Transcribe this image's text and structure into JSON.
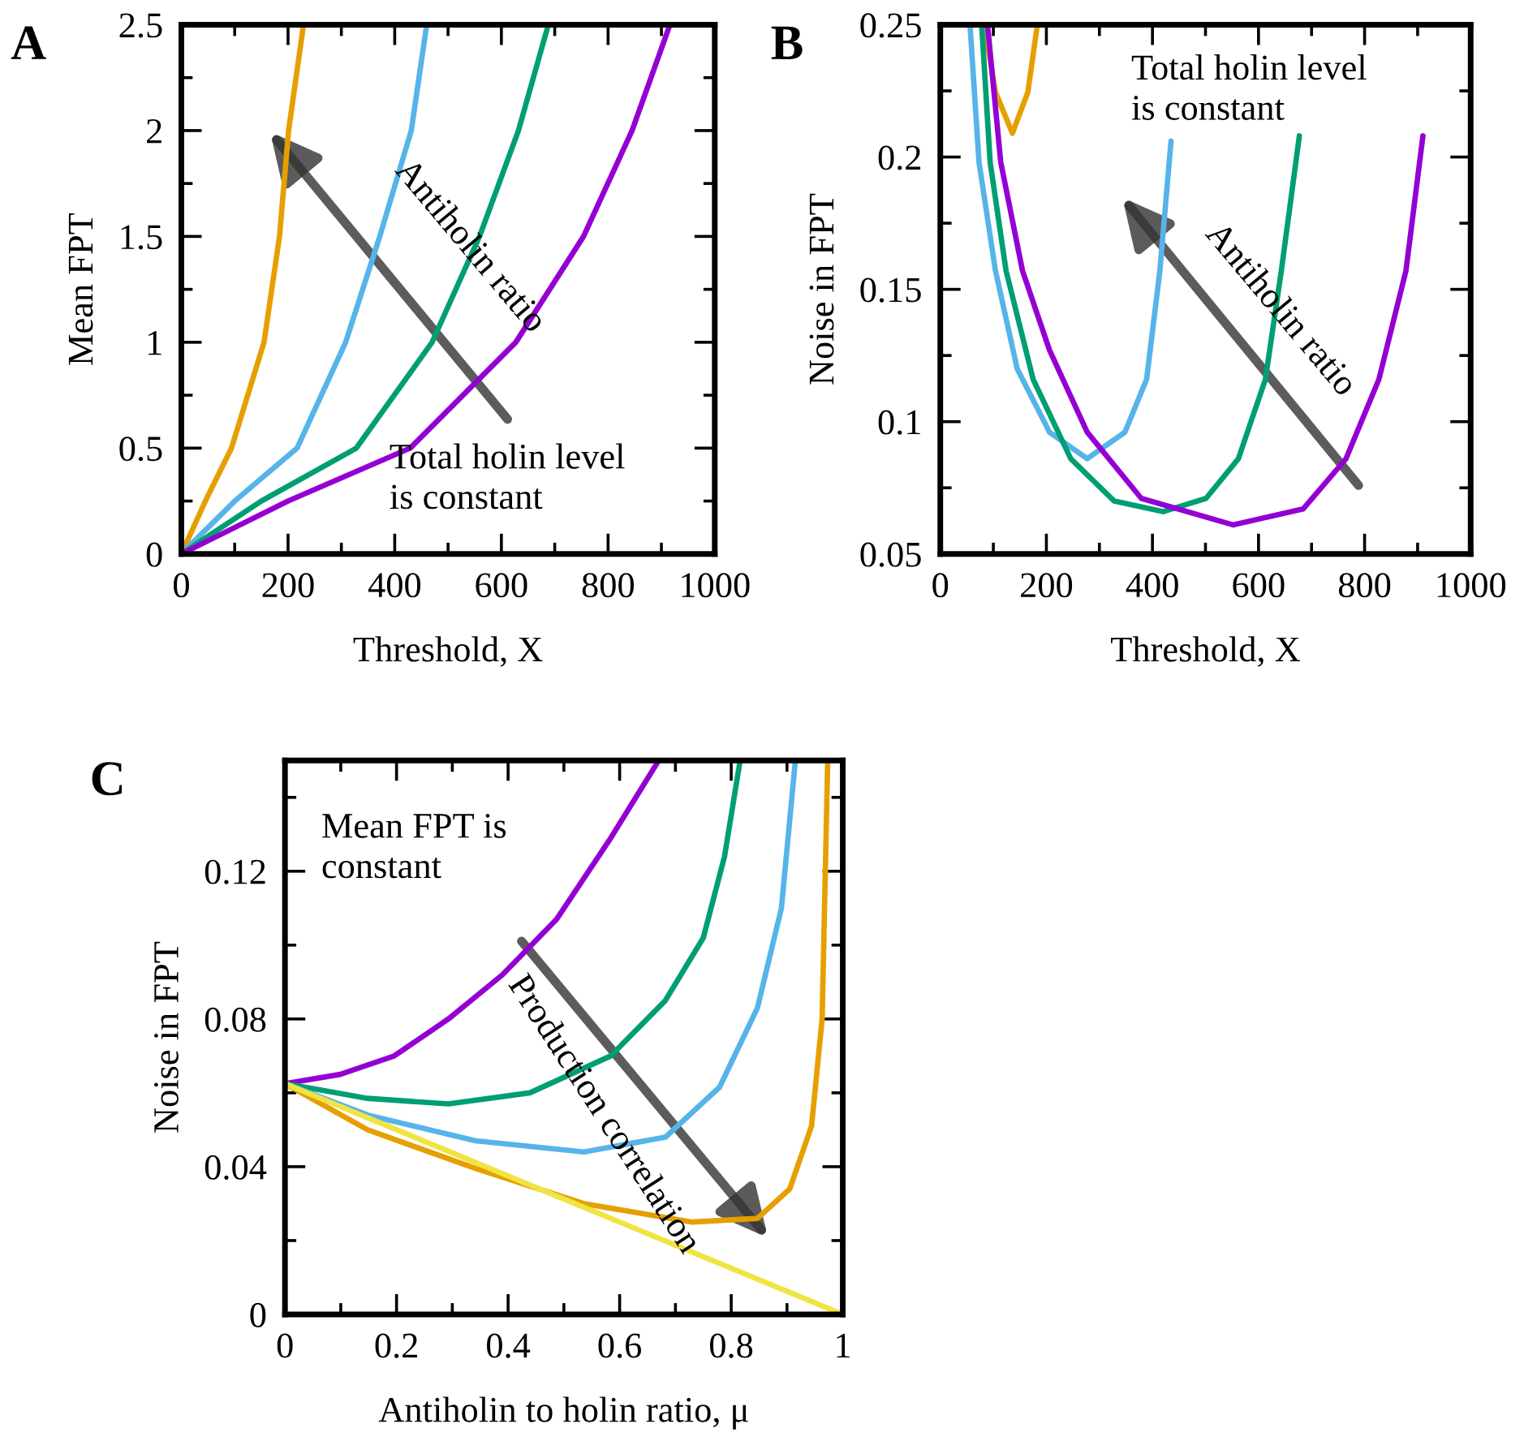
{
  "chart_data": [
    {
      "type": "line",
      "title": "A",
      "xlabel": "Threshold, X",
      "ylabel": "Mean FPT",
      "xlim": [
        0,
        1000
      ],
      "ylim": [
        0,
        2.5
      ],
      "xticks": [
        0,
        200,
        400,
        600,
        800,
        1000
      ],
      "yticks": [
        0,
        0.5,
        1,
        1.5,
        2,
        2.5
      ],
      "grid": false,
      "legend": false,
      "annotations": [
        "Antiholin ratio",
        "Total holin level\nis constant"
      ],
      "series": [
        {
          "color": "#e69f00",
          "x": [
            0,
            45,
            94,
            155,
            184,
            201,
            229
          ],
          "values": [
            0,
            0.25,
            0.5,
            1,
            1.5,
            2,
            2.5
          ]
        },
        {
          "color": "#56b4e9",
          "x": [
            0,
            100,
            217,
            308,
            372,
            431,
            460
          ],
          "values": [
            0,
            0.25,
            0.5,
            1,
            1.5,
            2,
            2.5
          ]
        },
        {
          "color": "#009e73",
          "x": [
            0,
            150,
            328,
            470,
            559,
            632,
            688
          ],
          "values": [
            0,
            0.25,
            0.5,
            1,
            1.5,
            2,
            2.5
          ]
        },
        {
          "color": "#9400d3",
          "x": [
            0,
            200,
            429,
            627,
            754,
            845,
            916
          ],
          "values": [
            0,
            0.25,
            0.5,
            1,
            1.5,
            2,
            2.5
          ]
        }
      ]
    },
    {
      "type": "line",
      "title": "B",
      "xlabel": "Threshold, X",
      "ylabel": "Noise in FPT",
      "xlim": [
        0,
        1000
      ],
      "ylim": [
        0.05,
        0.25
      ],
      "xticks": [
        0,
        200,
        400,
        600,
        800,
        1000
      ],
      "yticks": [
        0.05,
        0.1,
        0.15,
        0.2,
        0.25
      ],
      "grid": false,
      "legend": false,
      "annotations": [
        "Total holin level\nis constant",
        "Antiholin ratio"
      ],
      "series": [
        {
          "color": "#e69f00",
          "x": [
            83,
            104,
            136,
            165,
            183
          ],
          "values": [
            0.25,
            0.2245,
            0.209,
            0.2245,
            0.25
          ]
        },
        {
          "color": "#56b4e9",
          "x": [
            56,
            73,
            104,
            145,
            206,
            277,
            348,
            389,
            414,
            435
          ],
          "values": [
            0.25,
            0.198,
            0.157,
            0.12,
            0.096,
            0.086,
            0.096,
            0.116,
            0.157,
            0.206
          ]
        },
        {
          "color": "#009e73",
          "x": [
            78,
            94,
            124,
            175,
            246,
            328,
            420,
            501,
            562,
            613,
            643,
            677
          ],
          "values": [
            0.25,
            0.198,
            0.157,
            0.116,
            0.086,
            0.07,
            0.066,
            0.071,
            0.086,
            0.116,
            0.157,
            0.208
          ]
        },
        {
          "color": "#9400d3",
          "x": [
            89,
            114,
            155,
            206,
            277,
            379,
            552,
            684,
            765,
            827,
            878,
            910
          ],
          "values": [
            0.25,
            0.198,
            0.157,
            0.127,
            0.096,
            0.071,
            0.061,
            0.067,
            0.086,
            0.116,
            0.157,
            0.208
          ]
        }
      ]
    },
    {
      "type": "line",
      "xlabel": "Antiholin to holin ratio, μ",
      "ylabel": "Noise in FPT",
      "title": "C",
      "xlim": [
        0,
        1
      ],
      "ylim": [
        0,
        0.15
      ],
      "xticks": [
        0,
        0.2,
        0.4,
        0.6,
        0.8,
        1
      ],
      "yticks": [
        0,
        0.04,
        0.08,
        0.12
      ],
      "grid": false,
      "legend": false,
      "annotations": [
        "Mean FPT is\nconstant",
        "Production correlation"
      ],
      "series": [
        {
          "color": "#9400d3",
          "x": [
            0,
            0.099,
            0.196,
            0.293,
            0.39,
            0.487,
            0.584,
            0.67
          ],
          "values": [
            0.0625,
            0.065,
            0.07,
            0.08,
            0.092,
            0.107,
            0.129,
            0.15
          ]
        },
        {
          "color": "#009e73",
          "x": [
            0,
            0.148,
            0.293,
            0.439,
            0.584,
            0.682,
            0.75,
            0.788,
            0.816
          ],
          "values": [
            0.0625,
            0.0585,
            0.057,
            0.06,
            0.07,
            0.085,
            0.102,
            0.124,
            0.15
          ]
        },
        {
          "color": "#56b4e9",
          "x": [
            0,
            0.148,
            0.342,
            0.536,
            0.682,
            0.779,
            0.847,
            0.89,
            0.915
          ],
          "values": [
            0.0625,
            0.054,
            0.047,
            0.044,
            0.048,
            0.0615,
            0.083,
            0.11,
            0.15
          ]
        },
        {
          "color": "#e69f00",
          "x": [
            0,
            0.148,
            0.342,
            0.536,
            0.73,
            0.847,
            0.905,
            0.944,
            0.963,
            0.973
          ],
          "values": [
            0.0625,
            0.05,
            0.0395,
            0.03,
            0.025,
            0.026,
            0.034,
            0.051,
            0.08,
            0.15
          ]
        },
        {
          "color": "#f0e442",
          "x": [
            0,
            1
          ],
          "values": [
            0.0625,
            0
          ]
        }
      ]
    }
  ]
}
